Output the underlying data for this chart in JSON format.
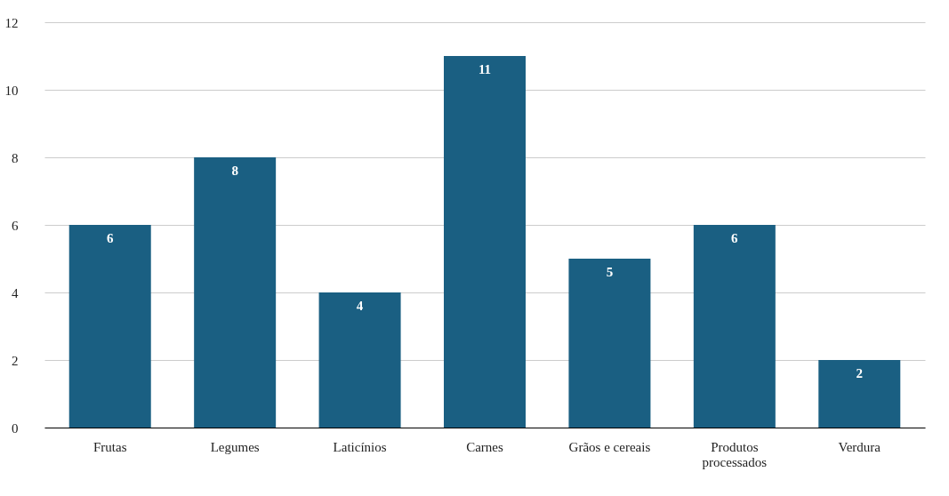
{
  "chart_data": {
    "type": "bar",
    "categories": [
      "Frutas",
      "Legumes",
      "Laticínios",
      "Carnes",
      "Grãos e cereais",
      "Produtos processados",
      "Verdura"
    ],
    "values": [
      6,
      8,
      4,
      11,
      5,
      6,
      2
    ],
    "color": "#1a5f82",
    "ylim": [
      0,
      12
    ],
    "yticks": [
      0,
      2,
      4,
      6,
      8,
      10,
      12
    ],
    "grid": "y",
    "data_labels": true
  }
}
